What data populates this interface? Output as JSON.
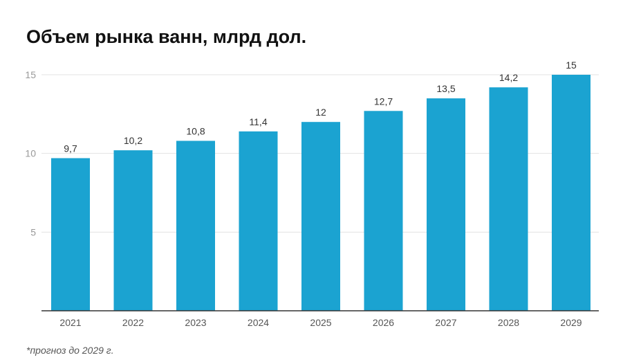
{
  "chart_data": {
    "type": "bar",
    "title": "Объем рынка ванн, млрд дол.",
    "categories": [
      "2021",
      "2022",
      "2023",
      "2024",
      "2025",
      "2026",
      "2027",
      "2028",
      "2029"
    ],
    "values": [
      9.7,
      10.2,
      10.8,
      11.4,
      12,
      12.7,
      13.5,
      14.2,
      15
    ],
    "value_labels": [
      "9,7",
      "10,2",
      "10,8",
      "11,4",
      "12",
      "12,7",
      "13,5",
      "14,2",
      "15"
    ],
    "yticks": [
      5,
      10,
      15
    ],
    "ytick_labels": [
      "5",
      "10",
      "15"
    ],
    "ylim": [
      0,
      15
    ],
    "xlabel": "",
    "ylabel": "",
    "grid": true,
    "bar_color": "#1ba3d1",
    "footnote": "*прогноз до 2029 г."
  }
}
